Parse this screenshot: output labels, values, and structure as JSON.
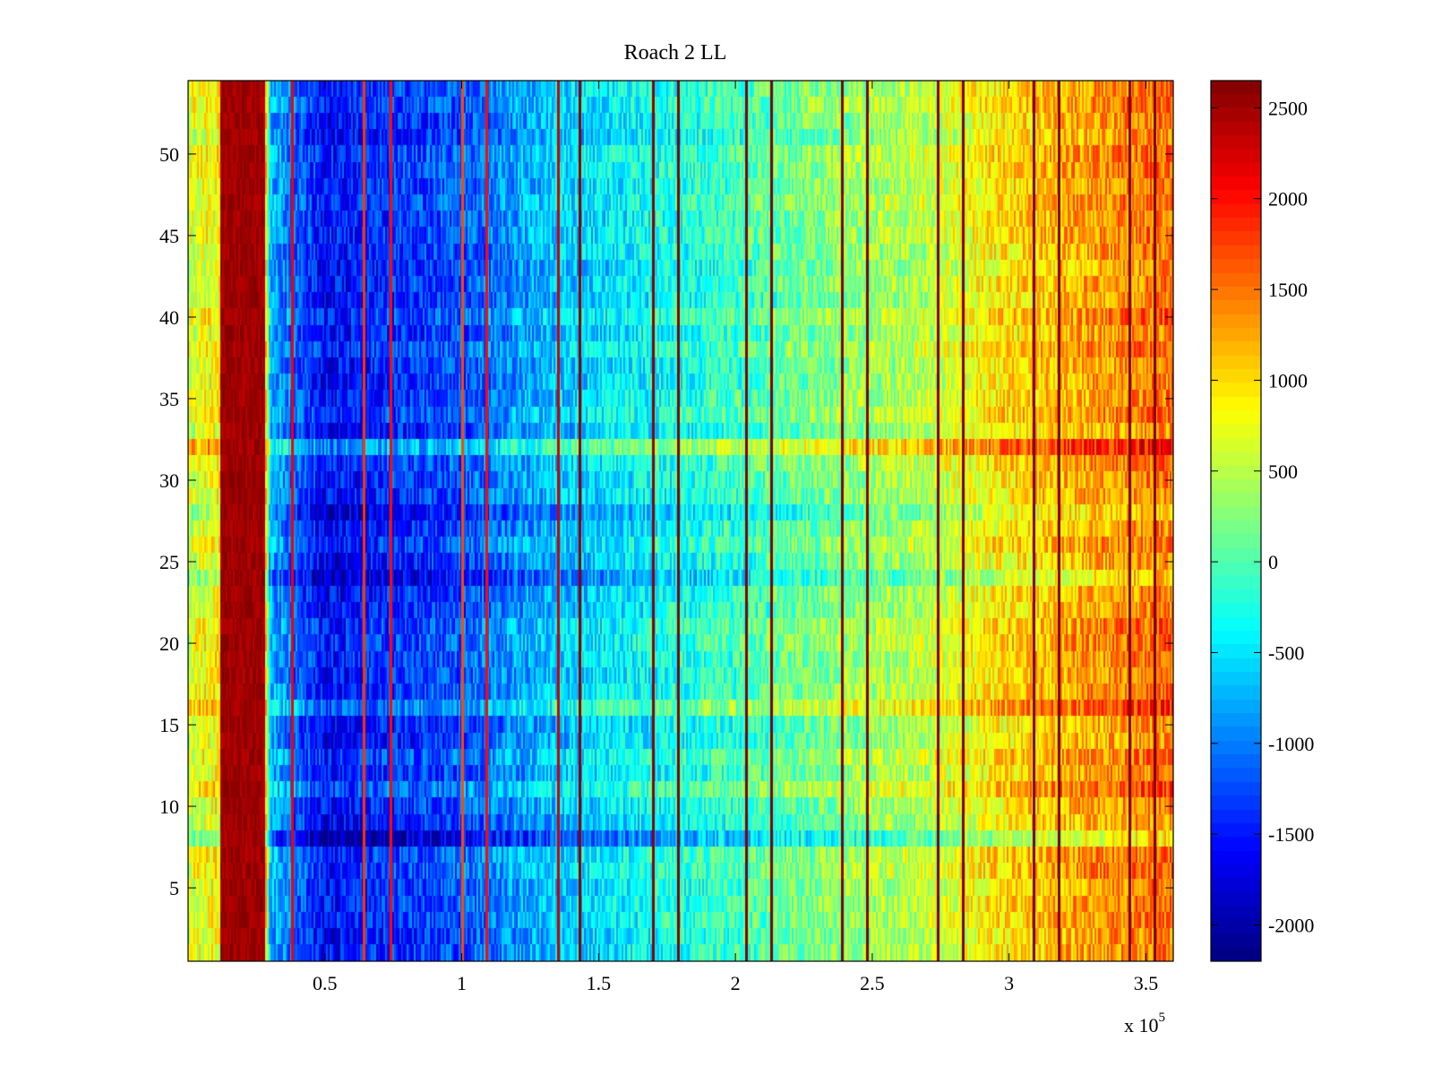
{
  "chart_data": {
    "type": "heatmap",
    "title": "Roach 2 LL",
    "xlabel": "",
    "ylabel": "",
    "x_multiplier_label": "x 10",
    "x_multiplier_exponent": "5",
    "xlim": [
      0,
      360000
    ],
    "ylim": [
      0.5,
      54.5
    ],
    "xticks": [
      50000,
      100000,
      150000,
      200000,
      250000,
      300000,
      350000
    ],
    "xtick_labels": [
      "0.5",
      "1",
      "1.5",
      "2",
      "2.5",
      "3",
      "3.5"
    ],
    "yticks": [
      5,
      10,
      15,
      20,
      25,
      30,
      35,
      40,
      45,
      50
    ],
    "ytick_labels": [
      "5",
      "10",
      "15",
      "20",
      "25",
      "30",
      "35",
      "40",
      "45",
      "50"
    ],
    "grid": false,
    "colormap": "jet",
    "clim": [
      -2200,
      2650
    ],
    "colorbar": {
      "position": "right",
      "ticks": [
        -2000,
        -1500,
        -1000,
        -500,
        0,
        500,
        1000,
        1500,
        2000,
        2500
      ],
      "tick_labels": [
        "-2000",
        "-1500",
        "-1000",
        "-500",
        "0",
        "500",
        "1000",
        "1500",
        "2000",
        "2500"
      ]
    },
    "rows": 54,
    "x_profile": {
      "x": [
        0,
        12000,
        27000,
        30000,
        50000,
        70000,
        100000,
        130000,
        160000,
        200000,
        240000,
        270000,
        295000,
        320000,
        350000,
        360000
      ],
      "values": [
        600,
        900,
        2600,
        -700,
        -1600,
        -1400,
        -1200,
        -700,
        -400,
        -100,
        300,
        500,
        900,
        1200,
        1450,
        1500
      ]
    },
    "high_band": {
      "x_start": 12000,
      "x_end": 28000,
      "value": 2650
    },
    "row_offsets": [
      {
        "row": 8,
        "offset": -400
      },
      {
        "row": 11,
        "offset": 300
      },
      {
        "row": 16,
        "offset": 300
      },
      {
        "row": 24,
        "offset": -400
      },
      {
        "row": 28,
        "offset": -300
      },
      {
        "row": 32,
        "offset": 500
      }
    ],
    "vertical_stripes": [
      {
        "x": 38000,
        "value": 2100
      },
      {
        "x": 64000,
        "value": 1800
      },
      {
        "x": 74000,
        "value": 2000
      },
      {
        "x": 100000,
        "value": 1700
      },
      {
        "x": 109000,
        "value": 2000
      },
      {
        "x": 135000,
        "value": 2300
      },
      {
        "x": 143000,
        "value": 2600
      },
      {
        "x": 170000,
        "value": 2600
      },
      {
        "x": 179000,
        "value": 2650
      },
      {
        "x": 204000,
        "value": 2650
      },
      {
        "x": 213000,
        "value": 2650
      },
      {
        "x": 239000,
        "value": 2650
      },
      {
        "x": 248000,
        "value": 2650
      },
      {
        "x": 274000,
        "value": 2650
      },
      {
        "x": 283000,
        "value": 2650
      },
      {
        "x": 309000,
        "value": 2650
      },
      {
        "x": 318000,
        "value": 2650
      },
      {
        "x": 344000,
        "value": 2650
      },
      {
        "x": 353000,
        "value": 2650
      }
    ]
  }
}
